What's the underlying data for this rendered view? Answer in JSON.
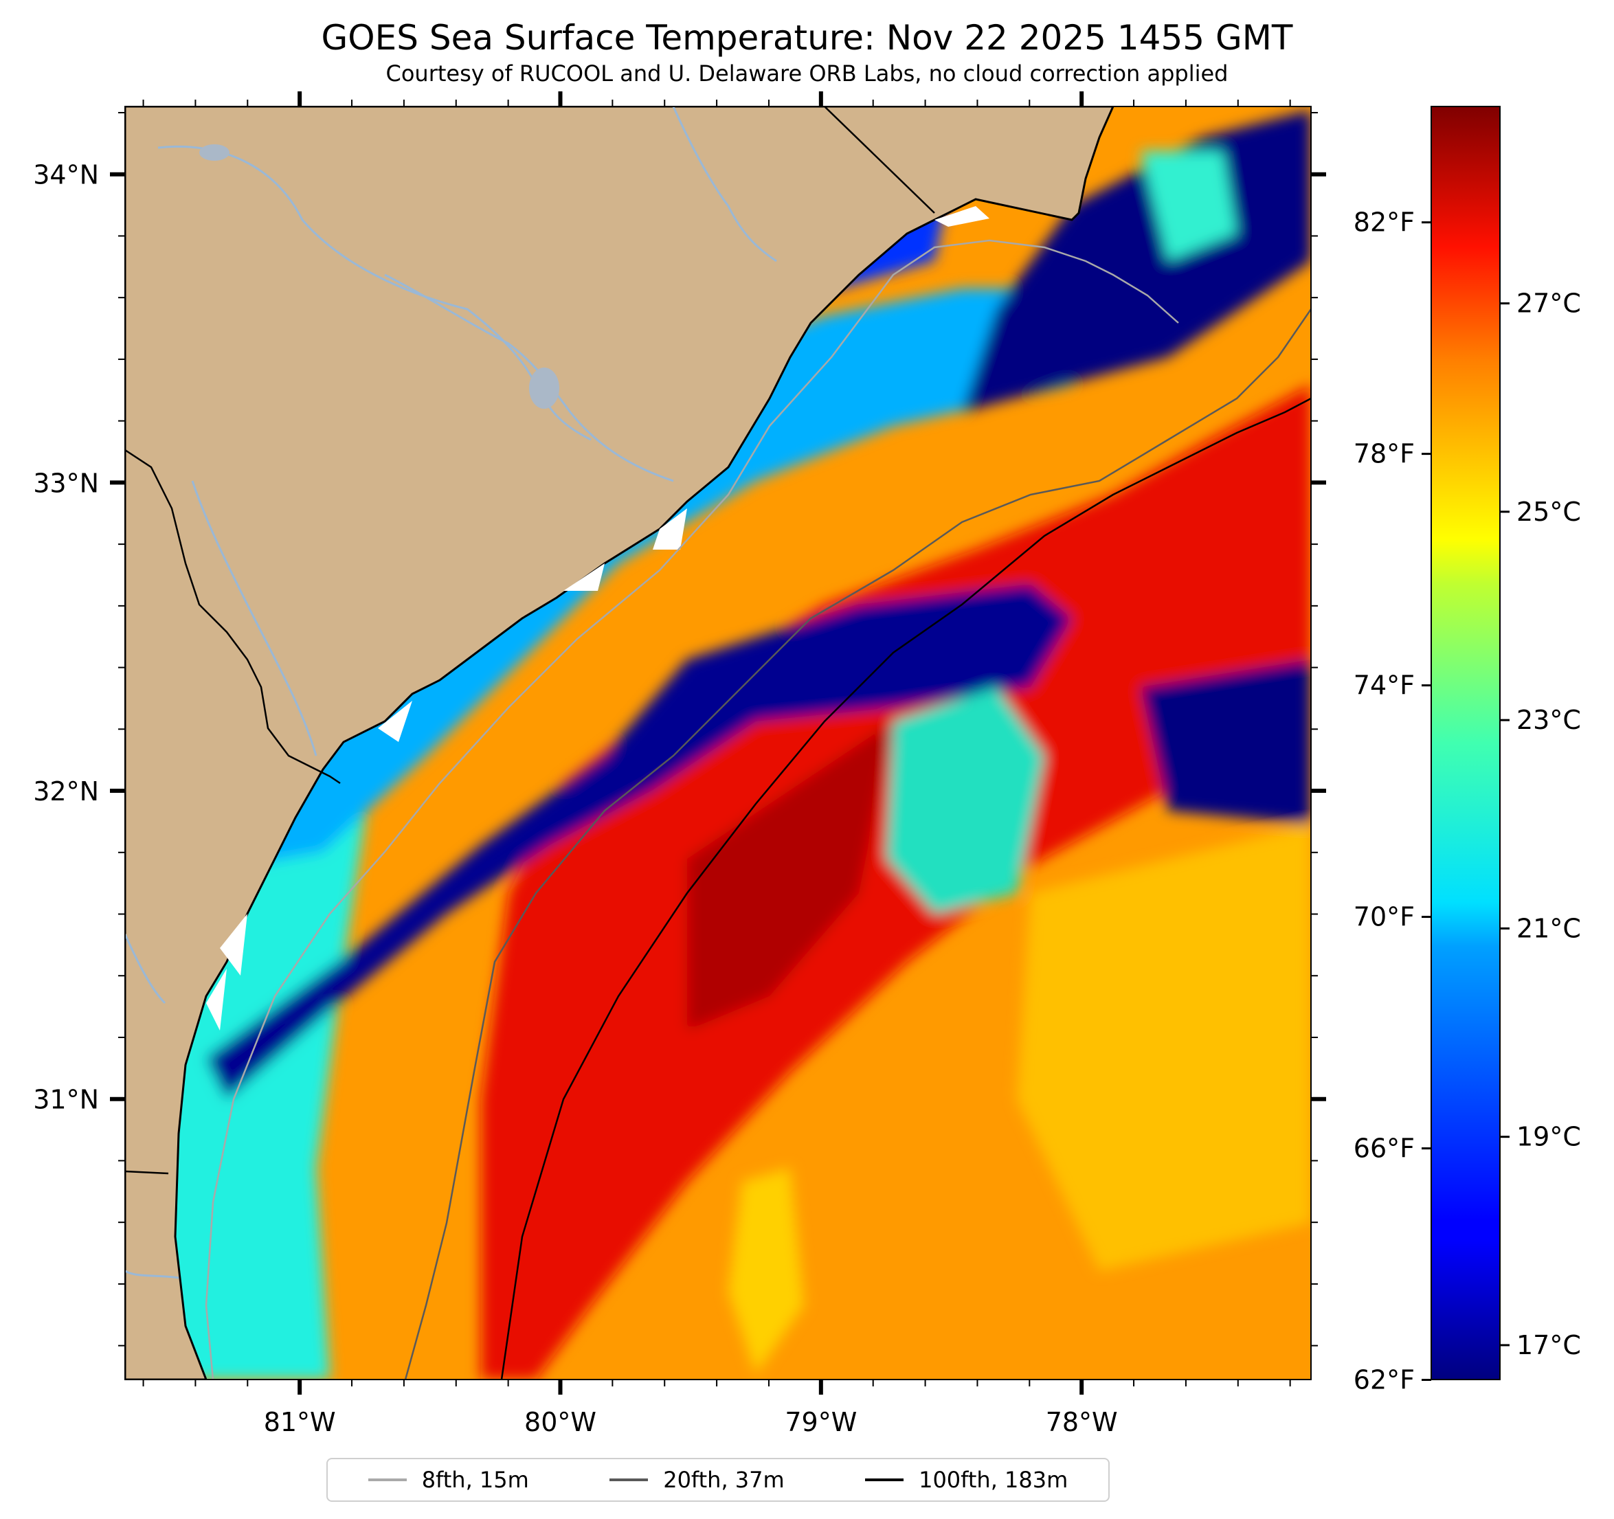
{
  "title": "GOES Sea Surface Temperature: Nov 22 2025 1455 GMT",
  "subtitle": "Courtesy of RUCOOL and U. Delaware ORB Labs, no cloud correction applied",
  "map": {
    "extent": {
      "lon_min": -81.67,
      "lon_max": -77.12,
      "lat_min": 30.09,
      "lat_max": 34.22
    },
    "lat_ticks": [
      {
        "value": 34,
        "label": "34°N"
      },
      {
        "value": 33,
        "label": "33°N"
      },
      {
        "value": 32,
        "label": "32°N"
      },
      {
        "value": 31,
        "label": "31°N"
      }
    ],
    "lon_ticks": [
      {
        "value": -81,
        "label": "81°W"
      },
      {
        "value": -80,
        "label": "80°W"
      },
      {
        "value": -79,
        "label": "79°W"
      },
      {
        "value": -78,
        "label": "78°W"
      }
    ],
    "colors": {
      "land": "#d2b48c",
      "rivers": "#9ab8d6",
      "coast": "#000000"
    }
  },
  "colorbar": {
    "celsius_range": [
      16.67,
      28.89
    ],
    "celsius_ticks": [
      {
        "value": 17,
        "label": "17°C"
      },
      {
        "value": 19,
        "label": "19°C"
      },
      {
        "value": 21,
        "label": "21°C"
      },
      {
        "value": 23,
        "label": "23°C"
      },
      {
        "value": 25,
        "label": "25°C"
      },
      {
        "value": 27,
        "label": "27°C"
      }
    ],
    "fahrenheit_ticks": [
      {
        "value": 62,
        "label": "62°F"
      },
      {
        "value": 66,
        "label": "66°F"
      },
      {
        "value": 70,
        "label": "70°F"
      },
      {
        "value": 74,
        "label": "74°F"
      },
      {
        "value": 78,
        "label": "78°F"
      },
      {
        "value": 82,
        "label": "82°F"
      }
    ]
  },
  "legend": {
    "items": [
      {
        "label": "8fth, 15m",
        "color": "#a9a9a9"
      },
      {
        "label": "20fth, 37m",
        "color": "#595959"
      },
      {
        "label": "100fth, 183m",
        "color": "#000000"
      }
    ]
  }
}
